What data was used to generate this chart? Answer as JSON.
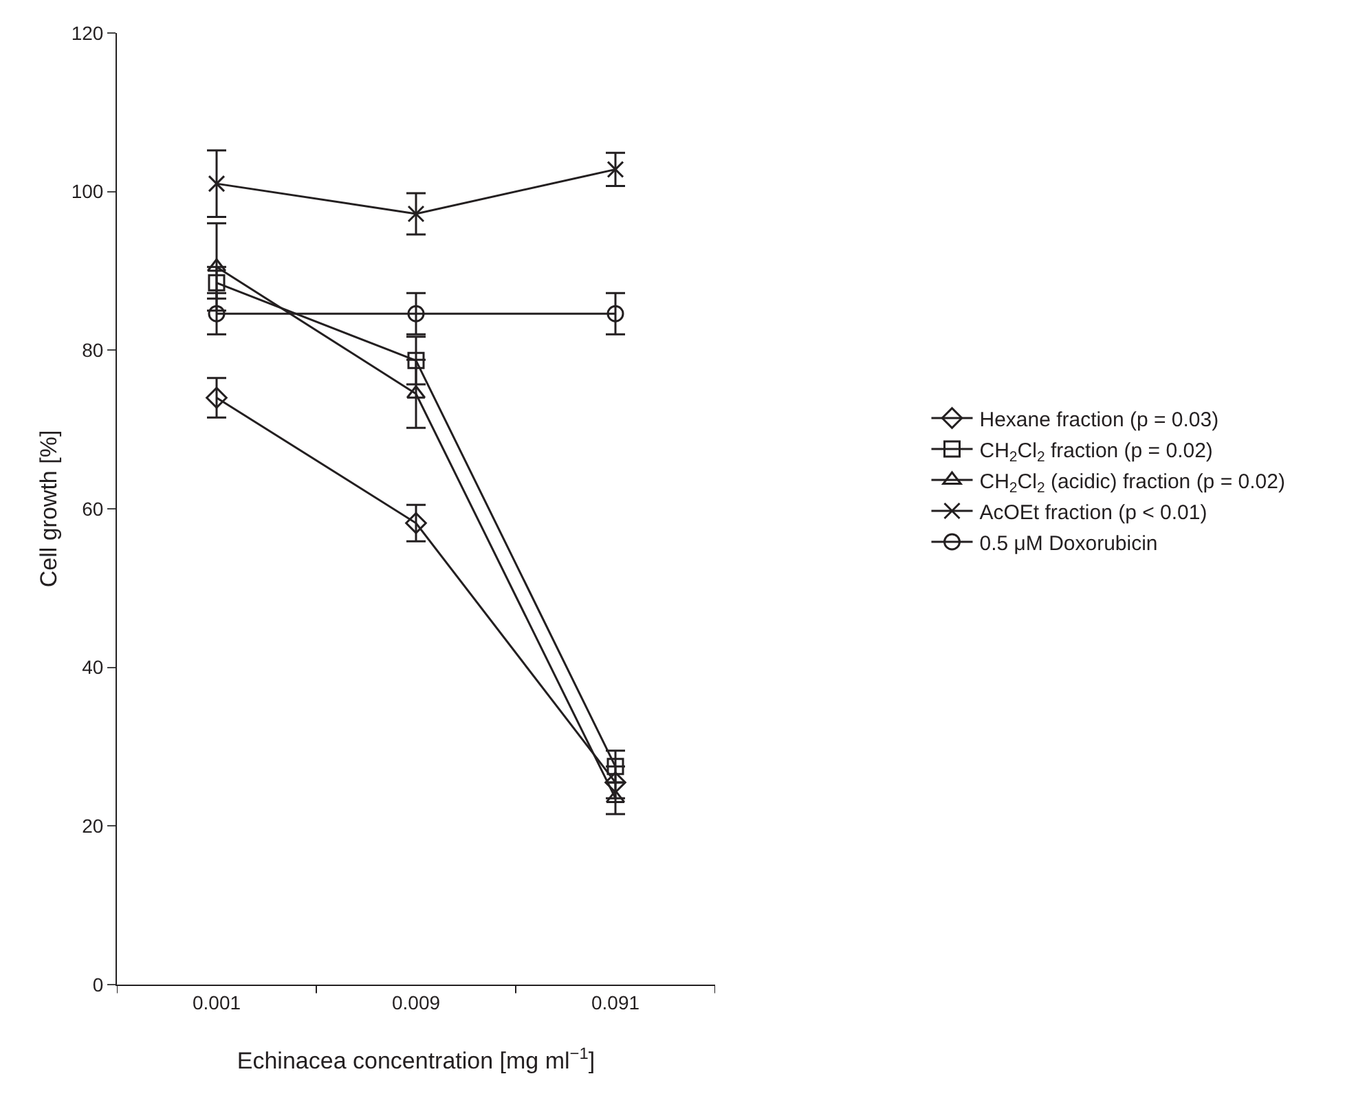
{
  "chart_data": {
    "type": "line",
    "xlabel": "Echinacea concentration [mg ml$^{−1}$]",
    "ylabel": "Cell growth [%]",
    "categories": [
      "0.001",
      "0.009",
      "0.091"
    ],
    "series": [
      {
        "name": "Hexane fraction (p = 0.03)",
        "color": "#231f20",
        "marker": "diamond",
        "values": [
          74,
          58.2,
          25.5
        ],
        "errors": [
          2.5,
          2.3,
          2
        ]
      },
      {
        "name": "CH$_{2}$Cl$_{2}$ fraction (p = 0.02)",
        "color": "#231f20",
        "marker": "square",
        "values": [
          88.5,
          78.7,
          27.5
        ],
        "errors": [
          2,
          3,
          2
        ]
      },
      {
        "name": "CH$_{2}$Cl$_{2}$ (acidic) fraction (p = 0.02)",
        "color": "#231f20",
        "marker": "triangle",
        "values": [
          90.5,
          74.5,
          23.5
        ],
        "errors": [
          5.5,
          4.3,
          2
        ]
      },
      {
        "name": "AcOEt fraction (p < 0.01)",
        "color": "#231f20",
        "marker": "cross",
        "values": [
          101,
          97.2,
          102.8
        ],
        "errors": [
          4.2,
          2.6,
          2.1
        ]
      },
      {
        "name": "0.5 μM Doxorubicin",
        "color": "#231f20",
        "marker": "circle",
        "values": [
          84.6,
          84.6,
          84.6
        ],
        "errors": [
          2.6,
          2.6,
          2.6
        ]
      }
    ],
    "ylim": [
      0,
      120
    ],
    "yticks": [
      0,
      20,
      40,
      60,
      80,
      100,
      120
    ],
    "grid": false,
    "legend": "right",
    "line_style": "solid"
  }
}
